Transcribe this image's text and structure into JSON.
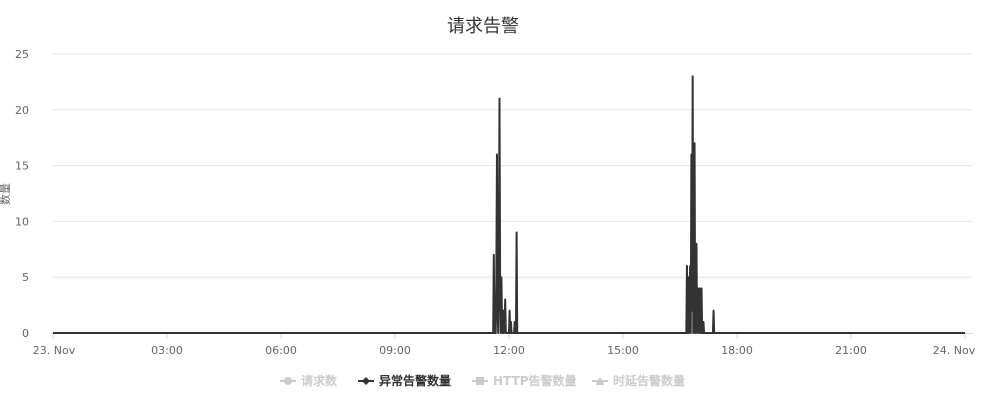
{
  "chart_data": {
    "type": "line",
    "title": "请求告警",
    "ylabel": "数量",
    "ylim": [
      0,
      25
    ],
    "yticks": [
      "0",
      "5",
      "10",
      "15",
      "20",
      "25"
    ],
    "xlim": [
      "23. Nov 00:00",
      "24. Nov 00:00"
    ],
    "xtick_labels": [
      "23. Nov",
      "03:00",
      "06:00",
      "09:00",
      "12:00",
      "15:00",
      "18:00",
      "21:00",
      "24. Nov"
    ],
    "grid": true,
    "legend_position": "bottom",
    "legend": [
      {
        "name": "请求数",
        "marker": "circle",
        "active": false
      },
      {
        "name": "异常告警数量",
        "marker": "diamond",
        "active": true
      },
      {
        "name": "HTTP告警数量",
        "marker": "square",
        "active": false
      },
      {
        "name": "时延告警数量",
        "marker": "triangle",
        "active": false
      }
    ],
    "series": [
      {
        "name": "异常告警数量",
        "color": "#333333",
        "x": [
          "11:35",
          "11:36",
          "11:37",
          "11:38",
          "11:39",
          "11:40",
          "11:41",
          "11:42",
          "11:43",
          "11:44",
          "11:45",
          "11:46",
          "11:47",
          "11:48",
          "11:49",
          "11:50",
          "11:51",
          "11:52",
          "11:53",
          "11:54",
          "11:55",
          "11:56",
          "11:57",
          "11:58",
          "11:59",
          "12:00",
          "12:01",
          "12:02",
          "12:03",
          "12:04",
          "12:05",
          "12:06",
          "12:08",
          "12:09",
          "12:10",
          "12:11",
          "12:12",
          "12:13",
          "12:14",
          "12:15",
          "16:40",
          "16:41",
          "16:42",
          "16:43",
          "16:44",
          "16:45",
          "16:46",
          "16:47",
          "16:48",
          "16:49",
          "16:50",
          "16:51",
          "16:52",
          "16:53",
          "16:54",
          "16:55",
          "16:56",
          "16:57",
          "16:58",
          "16:59",
          "17:00",
          "17:01",
          "17:02",
          "17:03",
          "17:04",
          "17:05",
          "17:06",
          "17:07",
          "17:08",
          "17:09",
          "17:10",
          "17:11",
          "17:12",
          "17:13",
          "17:14",
          "17:15",
          "17:16",
          "17:17",
          "17:18",
          "17:19",
          "17:20",
          "17:22",
          "17:23",
          "17:24"
        ],
        "values": [
          0,
          7,
          0,
          3,
          0,
          5,
          16,
          2,
          0,
          6,
          21,
          4,
          0,
          5,
          1,
          0,
          2,
          0,
          1,
          3,
          0,
          0,
          0,
          0,
          0,
          0,
          2,
          0,
          1,
          0,
          0,
          0,
          0,
          1,
          0,
          0,
          9,
          0,
          0,
          0,
          0,
          6,
          0,
          5,
          0,
          3,
          6,
          0,
          16,
          2,
          23,
          0,
          4,
          17,
          0,
          2,
          8,
          0,
          4,
          1,
          0,
          4,
          1,
          0,
          4,
          0,
          0,
          1,
          0,
          0,
          0,
          0,
          0,
          0,
          0,
          0,
          0,
          0,
          0,
          0,
          0,
          0,
          2,
          0
        ]
      }
    ]
  }
}
